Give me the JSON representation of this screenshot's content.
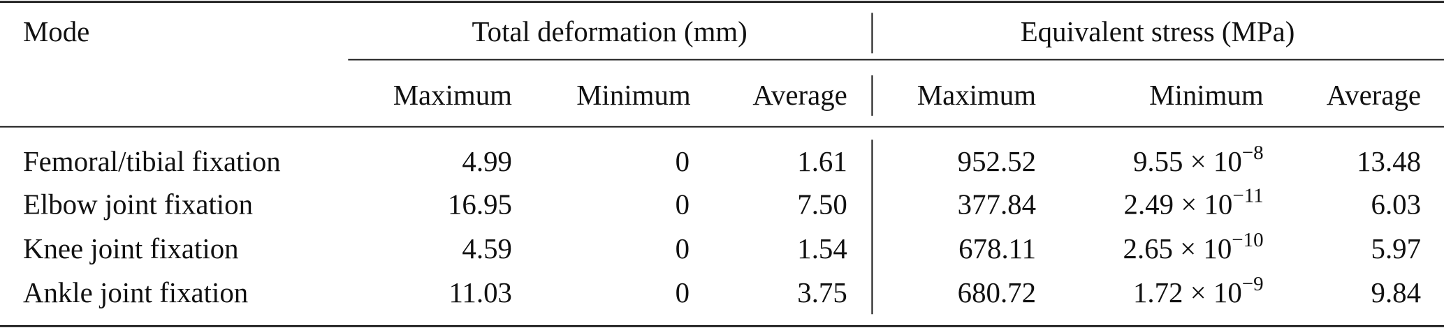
{
  "table": {
    "header": {
      "mode": "Mode",
      "groups": [
        "Total deformation (mm)",
        "Equivalent stress (MPa)"
      ],
      "columns": [
        "Maximum",
        "Minimum",
        "Average",
        "Maximum",
        "Minimum",
        "Average"
      ]
    },
    "rows": [
      [
        "Femoral/tibial fixation",
        "4.99",
        "0",
        "1.61",
        "952.52",
        {
          "base": "9.55 × 10",
          "exponent": "−8"
        },
        "13.48"
      ],
      [
        "Elbow joint fixation",
        "16.95",
        "0",
        "7.50",
        "377.84",
        {
          "base": "2.49 × 10",
          "exponent": "−11"
        },
        "6.03"
      ],
      [
        "Knee joint fixation",
        "4.59",
        "0",
        "1.54",
        "678.11",
        {
          "base": "2.65 × 10",
          "exponent": "−10"
        },
        "5.97"
      ],
      [
        "Ankle joint fixation",
        "11.03",
        "0",
        "3.75",
        "680.72",
        {
          "base": "1.72 × 10",
          "exponent": "−9"
        },
        "9.84"
      ]
    ]
  }
}
